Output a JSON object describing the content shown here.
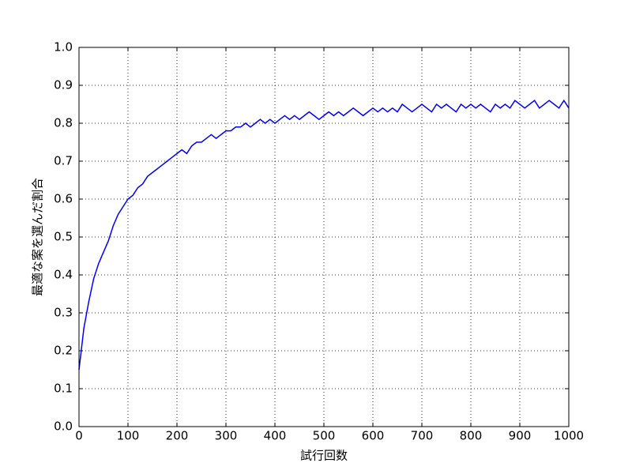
{
  "chart_data": {
    "type": "line",
    "xlabel": "試行回数",
    "ylabel": "最適な案を選んだ割合",
    "color": "#0000ff",
    "grid": true,
    "xlim": [
      0,
      1000
    ],
    "xticks": [
      0,
      100,
      200,
      300,
      400,
      500,
      600,
      700,
      800,
      900,
      1000
    ],
    "ylim": [
      0,
      1
    ],
    "yticks": [
      {
        "value": 0,
        "label": "0.0"
      },
      0.1,
      0.2,
      0.3,
      0.4,
      0.5,
      0.6,
      0.7,
      0.8,
      0.9,
      {
        "value": 1,
        "label": "1.0"
      }
    ],
    "x": [
      0,
      10,
      20,
      30,
      40,
      50,
      60,
      70,
      80,
      90,
      100,
      110,
      120,
      130,
      140,
      150,
      160,
      170,
      180,
      190,
      200,
      210,
      220,
      230,
      240,
      250,
      260,
      270,
      280,
      290,
      300,
      310,
      320,
      330,
      340,
      350,
      360,
      370,
      380,
      390,
      400,
      410,
      420,
      430,
      440,
      450,
      460,
      470,
      480,
      490,
      500,
      510,
      520,
      530,
      540,
      550,
      560,
      570,
      580,
      590,
      600,
      610,
      620,
      630,
      640,
      650,
      660,
      670,
      680,
      690,
      700,
      710,
      720,
      730,
      740,
      750,
      760,
      770,
      780,
      790,
      800,
      810,
      820,
      830,
      840,
      850,
      860,
      870,
      880,
      890,
      900,
      910,
      920,
      930,
      940,
      950,
      960,
      970,
      980,
      990,
      1000
    ],
    "values": [
      0.15,
      0.26,
      0.33,
      0.39,
      0.43,
      0.46,
      0.49,
      0.53,
      0.56,
      0.58,
      0.6,
      0.61,
      0.63,
      0.64,
      0.66,
      0.67,
      0.68,
      0.69,
      0.7,
      0.71,
      0.72,
      0.73,
      0.72,
      0.74,
      0.75,
      0.75,
      0.76,
      0.77,
      0.76,
      0.77,
      0.78,
      0.78,
      0.79,
      0.79,
      0.8,
      0.79,
      0.8,
      0.81,
      0.8,
      0.81,
      0.8,
      0.81,
      0.82,
      0.81,
      0.82,
      0.81,
      0.82,
      0.83,
      0.82,
      0.81,
      0.82,
      0.83,
      0.82,
      0.83,
      0.82,
      0.83,
      0.84,
      0.83,
      0.82,
      0.83,
      0.84,
      0.83,
      0.84,
      0.83,
      0.84,
      0.83,
      0.85,
      0.84,
      0.83,
      0.84,
      0.85,
      0.84,
      0.83,
      0.85,
      0.84,
      0.85,
      0.84,
      0.83,
      0.85,
      0.84,
      0.85,
      0.84,
      0.85,
      0.84,
      0.83,
      0.85,
      0.84,
      0.85,
      0.84,
      0.86,
      0.85,
      0.84,
      0.85,
      0.86,
      0.84,
      0.85,
      0.86,
      0.85,
      0.84,
      0.86,
      0.84
    ]
  }
}
